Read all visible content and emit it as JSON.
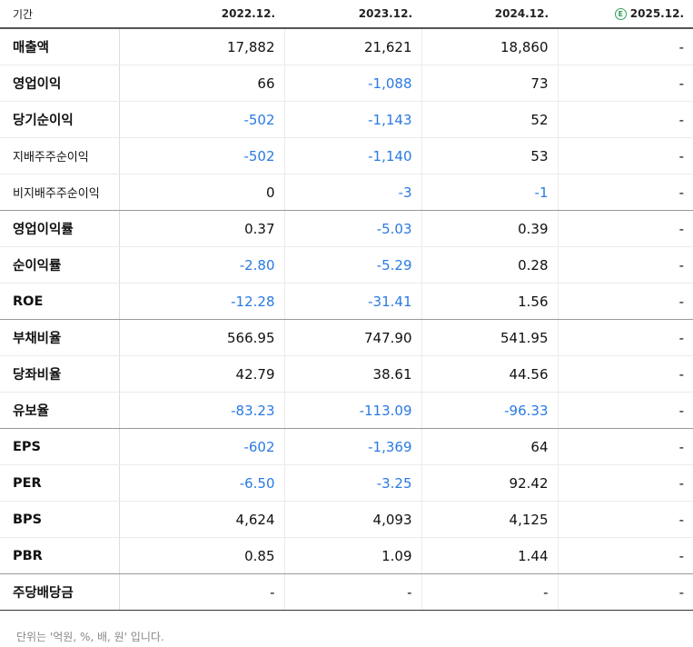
{
  "header": {
    "period_label": "기간",
    "periods": [
      "2022.12.",
      "2023.12.",
      "2024.12.",
      "2025.12."
    ],
    "estimate_icon": "E"
  },
  "rows": [
    {
      "label": "매출액",
      "small": false,
      "values": [
        "17,882",
        "21,621",
        "18,860",
        "-"
      ],
      "group_end": false
    },
    {
      "label": "영업이익",
      "small": false,
      "values": [
        "66",
        "-1,088",
        "73",
        "-"
      ],
      "group_end": false
    },
    {
      "label": "당기순이익",
      "small": false,
      "values": [
        "-502",
        "-1,143",
        "52",
        "-"
      ],
      "group_end": false
    },
    {
      "label": "지배주주순이익",
      "small": true,
      "values": [
        "-502",
        "-1,140",
        "53",
        "-"
      ],
      "group_end": false
    },
    {
      "label": "비지배주주순이익",
      "small": true,
      "values": [
        "0",
        "-3",
        "-1",
        "-"
      ],
      "group_end": true
    },
    {
      "label": "영업이익률",
      "small": false,
      "values": [
        "0.37",
        "-5.03",
        "0.39",
        "-"
      ],
      "group_end": false
    },
    {
      "label": "순이익률",
      "small": false,
      "values": [
        "-2.80",
        "-5.29",
        "0.28",
        "-"
      ],
      "group_end": false
    },
    {
      "label": "ROE",
      "small": false,
      "values": [
        "-12.28",
        "-31.41",
        "1.56",
        "-"
      ],
      "group_end": true
    },
    {
      "label": "부채비율",
      "small": false,
      "values": [
        "566.95",
        "747.90",
        "541.95",
        "-"
      ],
      "group_end": false
    },
    {
      "label": "당좌비율",
      "small": false,
      "values": [
        "42.79",
        "38.61",
        "44.56",
        "-"
      ],
      "group_end": false
    },
    {
      "label": "유보율",
      "small": false,
      "values": [
        "-83.23",
        "-113.09",
        "-96.33",
        "-"
      ],
      "group_end": true
    },
    {
      "label": "EPS",
      "small": false,
      "values": [
        "-602",
        "-1,369",
        "64",
        "-"
      ],
      "group_end": false
    },
    {
      "label": "PER",
      "small": false,
      "values": [
        "-6.50",
        "-3.25",
        "92.42",
        "-"
      ],
      "group_end": false
    },
    {
      "label": "BPS",
      "small": false,
      "values": [
        "4,624",
        "4,093",
        "4,125",
        "-"
      ],
      "group_end": false
    },
    {
      "label": "PBR",
      "small": false,
      "values": [
        "0.85",
        "1.09",
        "1.44",
        "-"
      ],
      "group_end": true
    },
    {
      "label": "주당배당금",
      "small": false,
      "values": [
        "-",
        "-",
        "-",
        "-"
      ],
      "group_end": false
    }
  ],
  "footnote": "단위는 '억원, %, 배, 원' 입니다.",
  "colors": {
    "negative": "#2a7ae2",
    "estimate": "#2f9d5b"
  }
}
